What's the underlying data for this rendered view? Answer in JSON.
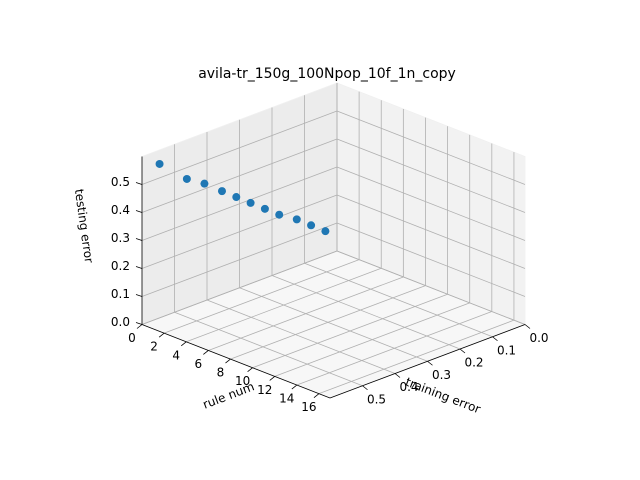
{
  "chart_data": {
    "type": "scatter",
    "title": "avila-tr_150g_100Npop_10f_1n_copy",
    "xlabel": "rule num",
    "ylabel": "training error",
    "zlabel": "testing error",
    "x_ticks": [
      "0",
      "2",
      "4",
      "6",
      "8",
      "10",
      "12",
      "14",
      "16"
    ],
    "y_ticks": [
      "0.0",
      "0.1",
      "0.2",
      "0.3",
      "0.4",
      "0.5"
    ],
    "z_ticks": [
      "0.0",
      "0.1",
      "0.2",
      "0.3",
      "0.4",
      "0.5"
    ],
    "xlim": [
      0,
      17
    ],
    "ylim": [
      0,
      0.6
    ],
    "zlim": [
      0,
      0.6
    ],
    "grid": true,
    "marker_color": "#1f77b4",
    "points": [
      {
        "rule_num": 1,
        "training_error": 0.58,
        "testing_error": 0.58
      },
      {
        "rule_num": 2,
        "training_error": 0.53,
        "testing_error": 0.52
      },
      {
        "rule_num": 3,
        "training_error": 0.51,
        "testing_error": 0.51
      },
      {
        "rule_num": 4,
        "training_error": 0.49,
        "testing_error": 0.49
      },
      {
        "rule_num": 5,
        "training_error": 0.48,
        "testing_error": 0.48
      },
      {
        "rule_num": 6,
        "training_error": 0.47,
        "testing_error": 0.47
      },
      {
        "rule_num": 7,
        "training_error": 0.46,
        "testing_error": 0.46
      },
      {
        "rule_num": 8,
        "training_error": 0.45,
        "testing_error": 0.45
      },
      {
        "rule_num": 9,
        "training_error": 0.43,
        "testing_error": 0.44
      },
      {
        "rule_num": 10,
        "training_error": 0.42,
        "testing_error": 0.43
      },
      {
        "rule_num": 11,
        "training_error": 0.41,
        "testing_error": 0.42
      }
    ]
  }
}
